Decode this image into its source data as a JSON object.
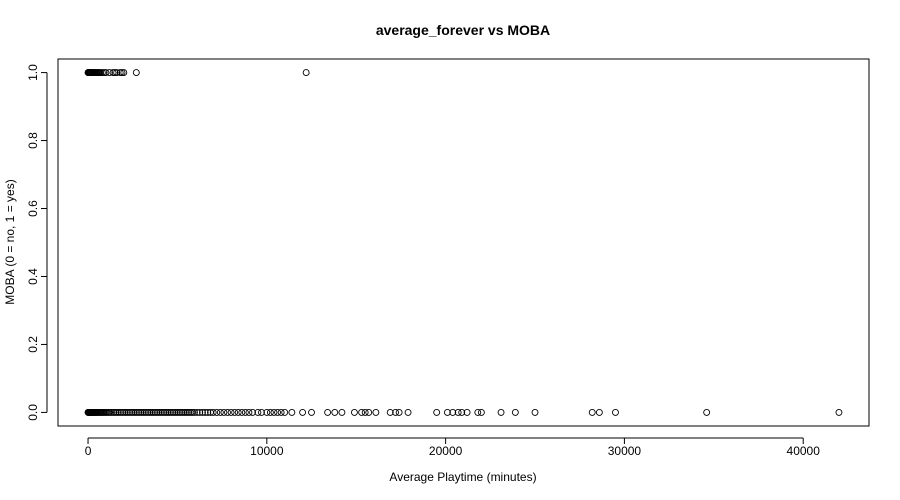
{
  "chart_data": {
    "type": "scatter",
    "title": "average_forever vs MOBA",
    "xlabel": "Average Playtime (minutes)",
    "ylabel": "MOBA (0 = no, 1 = yes)",
    "xlim": [
      -1680,
      43680
    ],
    "ylim": [
      -0.04,
      1.04
    ],
    "x_ticks": [
      0,
      10000,
      20000,
      30000,
      40000
    ],
    "x_tick_labels": [
      "0",
      "10000",
      "20000",
      "30000",
      "40000"
    ],
    "y_ticks": [
      0.0,
      0.2,
      0.4,
      0.6,
      0.8,
      1.0
    ],
    "y_tick_labels": [
      "0.0",
      "0.2",
      "0.4",
      "0.6",
      "0.8",
      "1.0"
    ],
    "grid": false,
    "legend": "none",
    "marker": "open-circle",
    "series": [
      {
        "values_y": 1,
        "x": [
          0,
          20,
          40,
          60,
          80,
          100,
          120,
          150,
          180,
          210,
          240,
          280,
          320,
          360,
          400,
          450,
          500,
          550,
          600,
          650,
          700,
          800,
          900,
          1000,
          1200,
          1400,
          1500,
          1600,
          1800,
          1900,
          2000,
          2700,
          12200
        ]
      },
      {
        "values_y": 0,
        "x": [
          0,
          15,
          30,
          45,
          60,
          80,
          100,
          120,
          140,
          160,
          180,
          200,
          230,
          260,
          290,
          320,
          350,
          380,
          420,
          460,
          500,
          550,
          600,
          650,
          700,
          760,
          820,
          880,
          950,
          1020,
          1100,
          1180,
          1260,
          1350,
          1450,
          1550,
          1650,
          1750,
          1850,
          1950,
          2050,
          2150,
          2250,
          2350,
          2450,
          2550,
          2650,
          2750,
          2850,
          2950,
          3050,
          3150,
          3250,
          3350,
          3450,
          3550,
          3650,
          3750,
          3850,
          3950,
          4050,
          4150,
          4250,
          4350,
          4450,
          4550,
          4650,
          4750,
          4850,
          4950,
          5050,
          5150,
          5250,
          5350,
          5450,
          5550,
          5650,
          5750,
          5850,
          5950,
          6100,
          6250,
          6400,
          6550,
          6700,
          6850,
          7000,
          7200,
          7400,
          7600,
          7800,
          8000,
          8200,
          8400,
          8600,
          8800,
          9000,
          9200,
          9500,
          9700,
          10000,
          10200,
          10400,
          10600,
          10800,
          11000,
          11400,
          12000,
          12500,
          13400,
          13800,
          14200,
          14900,
          15300,
          15500,
          15700,
          16100,
          16900,
          17200,
          17400,
          17900,
          19500,
          20100,
          20400,
          20700,
          20900,
          21200,
          21800,
          22000,
          23100,
          23900,
          25000,
          28200,
          28600,
          29500,
          34600,
          42000
        ]
      }
    ]
  }
}
